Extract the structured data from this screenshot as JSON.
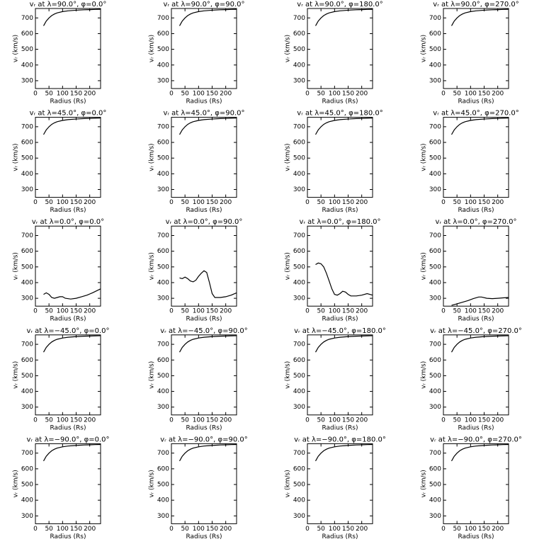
{
  "chart_data": [
    {
      "type": "line",
      "title": "vᵣ at λ=90.0°, φ=0.0°",
      "x_label": "Radius (Rs)",
      "y_label": "vᵣ (km/s)",
      "x": [
        30,
        40,
        50,
        60,
        70,
        80,
        100,
        120,
        140,
        160,
        180,
        200,
        220,
        240
      ],
      "values": [
        650,
        680,
        700,
        715,
        725,
        732,
        740,
        745,
        748,
        750,
        752,
        753,
        754,
        755
      ],
      "xlim": [
        0,
        240
      ],
      "ylim": [
        250,
        760
      ],
      "xticks": [
        0,
        50,
        100,
        150,
        200
      ],
      "yticks": [
        300,
        400,
        500,
        600,
        700
      ],
      "color": "#000000"
    },
    {
      "type": "line",
      "title": "vᵣ at λ=90.0°, φ=90.0°",
      "x_label": "Radius (Rs)",
      "y_label": "vᵣ (km/s)",
      "x": [
        30,
        40,
        50,
        60,
        70,
        80,
        100,
        120,
        140,
        160,
        180,
        200,
        220,
        240
      ],
      "values": [
        650,
        680,
        700,
        715,
        725,
        732,
        740,
        745,
        748,
        750,
        752,
        753,
        754,
        755
      ],
      "xlim": [
        0,
        240
      ],
      "ylim": [
        250,
        760
      ],
      "xticks": [
        0,
        50,
        100,
        150,
        200
      ],
      "yticks": [
        300,
        400,
        500,
        600,
        700
      ],
      "color": "#000000"
    },
    {
      "type": "line",
      "title": "vᵣ at λ=90.0°, φ=180.0°",
      "x_label": "Radius (Rs)",
      "y_label": "vᵣ (km/s)",
      "x": [
        30,
        40,
        50,
        60,
        70,
        80,
        100,
        120,
        140,
        160,
        180,
        200,
        220,
        240
      ],
      "values": [
        650,
        680,
        700,
        715,
        725,
        732,
        740,
        745,
        748,
        750,
        752,
        753,
        754,
        755
      ],
      "xlim": [
        0,
        240
      ],
      "ylim": [
        250,
        760
      ],
      "xticks": [
        0,
        50,
        100,
        150,
        200
      ],
      "yticks": [
        300,
        400,
        500,
        600,
        700
      ],
      "color": "#000000"
    },
    {
      "type": "line",
      "title": "vᵣ at λ=90.0°, φ=270.0°",
      "x_label": "Radius (Rs)",
      "y_label": "vᵣ (km/s)",
      "x": [
        30,
        40,
        50,
        60,
        70,
        80,
        100,
        120,
        140,
        160,
        180,
        200,
        220,
        240
      ],
      "values": [
        650,
        680,
        700,
        715,
        725,
        732,
        740,
        745,
        748,
        750,
        752,
        753,
        754,
        755
      ],
      "xlim": [
        0,
        240
      ],
      "ylim": [
        250,
        760
      ],
      "xticks": [
        0,
        50,
        100,
        150,
        200
      ],
      "yticks": [
        300,
        400,
        500,
        600,
        700
      ],
      "color": "#000000"
    },
    {
      "type": "line",
      "title": "vᵣ at λ=45.0°, φ=0.0°",
      "x_label": "Radius (Rs)",
      "y_label": "vᵣ (km/s)",
      "x": [
        30,
        40,
        50,
        60,
        70,
        80,
        100,
        120,
        140,
        160,
        180,
        200,
        220,
        240
      ],
      "values": [
        650,
        680,
        700,
        715,
        725,
        732,
        740,
        745,
        748,
        750,
        752,
        753,
        754,
        755
      ],
      "xlim": [
        0,
        240
      ],
      "ylim": [
        250,
        760
      ],
      "xticks": [
        0,
        50,
        100,
        150,
        200
      ],
      "yticks": [
        300,
        400,
        500,
        600,
        700
      ],
      "color": "#000000"
    },
    {
      "type": "line",
      "title": "vᵣ at λ=45.0°, φ=90.0°",
      "x_label": "Radius (Rs)",
      "y_label": "vᵣ (km/s)",
      "x": [
        30,
        40,
        50,
        60,
        70,
        80,
        100,
        120,
        140,
        160,
        180,
        200,
        220,
        240
      ],
      "values": [
        650,
        680,
        700,
        715,
        725,
        732,
        740,
        745,
        748,
        750,
        752,
        753,
        754,
        755
      ],
      "xlim": [
        0,
        240
      ],
      "ylim": [
        250,
        760
      ],
      "xticks": [
        0,
        50,
        100,
        150,
        200
      ],
      "yticks": [
        300,
        400,
        500,
        600,
        700
      ],
      "color": "#000000"
    },
    {
      "type": "line",
      "title": "vᵣ at λ=45.0°, φ=180.0°",
      "x_label": "Radius (Rs)",
      "y_label": "vᵣ (km/s)",
      "x": [
        30,
        40,
        50,
        60,
        70,
        80,
        100,
        120,
        140,
        160,
        180,
        200,
        220,
        240
      ],
      "values": [
        650,
        680,
        700,
        715,
        725,
        732,
        740,
        745,
        748,
        750,
        752,
        753,
        754,
        755
      ],
      "xlim": [
        0,
        240
      ],
      "ylim": [
        250,
        760
      ],
      "xticks": [
        0,
        50,
        100,
        150,
        200
      ],
      "yticks": [
        300,
        400,
        500,
        600,
        700
      ],
      "color": "#000000"
    },
    {
      "type": "line",
      "title": "vᵣ at λ=45.0°, φ=270.0°",
      "x_label": "Radius (Rs)",
      "y_label": "vᵣ (km/s)",
      "x": [
        30,
        40,
        50,
        60,
        70,
        80,
        100,
        120,
        140,
        160,
        180,
        200,
        220,
        240
      ],
      "values": [
        650,
        680,
        700,
        715,
        725,
        732,
        740,
        745,
        748,
        750,
        752,
        753,
        754,
        755
      ],
      "xlim": [
        0,
        240
      ],
      "ylim": [
        250,
        760
      ],
      "xticks": [
        0,
        50,
        100,
        150,
        200
      ],
      "yticks": [
        300,
        400,
        500,
        600,
        700
      ],
      "color": "#000000"
    },
    {
      "type": "line",
      "title": "vᵣ at λ=0.0°, φ=0.0°",
      "x_label": "Radius (Rs)",
      "y_label": "vᵣ (km/s)",
      "x": [
        30,
        40,
        50,
        60,
        70,
        80,
        90,
        100,
        110,
        130,
        150,
        170,
        190,
        210,
        240
      ],
      "values": [
        325,
        335,
        325,
        305,
        300,
        305,
        310,
        310,
        300,
        295,
        300,
        310,
        320,
        335,
        360
      ],
      "xlim": [
        0,
        240
      ],
      "ylim": [
        250,
        760
      ],
      "xticks": [
        0,
        50,
        100,
        150,
        200
      ],
      "yticks": [
        300,
        400,
        500,
        600,
        700
      ],
      "color": "#000000"
    },
    {
      "type": "line",
      "title": "vᵣ at λ=0.0°, φ=90.0°",
      "x_label": "Radius (Rs)",
      "y_label": "vᵣ (km/s)",
      "x": [
        30,
        40,
        50,
        60,
        70,
        80,
        90,
        100,
        110,
        120,
        130,
        140,
        150,
        160,
        180,
        200,
        220,
        240
      ],
      "values": [
        430,
        425,
        435,
        425,
        410,
        405,
        415,
        440,
        460,
        475,
        465,
        400,
        330,
        305,
        305,
        310,
        320,
        335
      ],
      "xlim": [
        0,
        240
      ],
      "ylim": [
        250,
        760
      ],
      "xticks": [
        0,
        50,
        100,
        150,
        200
      ],
      "yticks": [
        300,
        400,
        500,
        600,
        700
      ],
      "color": "#000000"
    },
    {
      "type": "line",
      "title": "vᵣ at λ=0.0°, φ=180.0°",
      "x_label": "Radius (Rs)",
      "y_label": "vᵣ (km/s)",
      "x": [
        30,
        40,
        50,
        60,
        70,
        80,
        90,
        100,
        110,
        120,
        130,
        140,
        150,
        160,
        180,
        200,
        220,
        240
      ],
      "values": [
        515,
        525,
        520,
        500,
        460,
        410,
        360,
        325,
        320,
        330,
        345,
        340,
        325,
        315,
        315,
        320,
        330,
        320
      ],
      "xlim": [
        0,
        240
      ],
      "ylim": [
        250,
        760
      ],
      "xticks": [
        0,
        50,
        100,
        150,
        200
      ],
      "yticks": [
        300,
        400,
        500,
        600,
        700
      ],
      "color": "#000000"
    },
    {
      "type": "line",
      "title": "vᵣ at λ=0.0°, φ=270.0°",
      "x_label": "Radius (Rs)",
      "y_label": "vᵣ (km/s)",
      "x": [
        30,
        50,
        70,
        90,
        110,
        130,
        140,
        160,
        180,
        200,
        220,
        240
      ],
      "values": [
        255,
        265,
        275,
        285,
        298,
        308,
        308,
        300,
        298,
        300,
        303,
        305
      ],
      "xlim": [
        0,
        240
      ],
      "ylim": [
        250,
        760
      ],
      "xticks": [
        0,
        50,
        100,
        150,
        200
      ],
      "yticks": [
        300,
        400,
        500,
        600,
        700
      ],
      "color": "#000000"
    },
    {
      "type": "line",
      "title": "vᵣ at λ=−45.0°, φ=0.0°",
      "x_label": "Radius (Rs)",
      "y_label": "vᵣ (km/s)",
      "x": [
        30,
        40,
        50,
        60,
        70,
        80,
        100,
        120,
        140,
        160,
        180,
        200,
        220,
        240
      ],
      "values": [
        650,
        680,
        700,
        715,
        725,
        732,
        740,
        745,
        748,
        750,
        752,
        753,
        754,
        755
      ],
      "xlim": [
        0,
        240
      ],
      "ylim": [
        250,
        760
      ],
      "xticks": [
        0,
        50,
        100,
        150,
        200
      ],
      "yticks": [
        300,
        400,
        500,
        600,
        700
      ],
      "color": "#000000"
    },
    {
      "type": "line",
      "title": "vᵣ at λ=−45.0°, φ=90.0°",
      "x_label": "Radius (Rs)",
      "y_label": "vᵣ (km/s)",
      "x": [
        30,
        40,
        50,
        60,
        70,
        80,
        100,
        120,
        140,
        160,
        180,
        200,
        220,
        240
      ],
      "values": [
        650,
        680,
        700,
        715,
        725,
        732,
        740,
        745,
        748,
        750,
        752,
        753,
        754,
        755
      ],
      "xlim": [
        0,
        240
      ],
      "ylim": [
        250,
        760
      ],
      "xticks": [
        0,
        50,
        100,
        150,
        200
      ],
      "yticks": [
        300,
        400,
        500,
        600,
        700
      ],
      "color": "#000000"
    },
    {
      "type": "line",
      "title": "vᵣ at λ=−45.0°, φ=180.0°",
      "x_label": "Radius (Rs)",
      "y_label": "vᵣ (km/s)",
      "x": [
        30,
        40,
        50,
        60,
        70,
        80,
        100,
        120,
        140,
        160,
        180,
        200,
        220,
        240
      ],
      "values": [
        650,
        680,
        700,
        715,
        725,
        732,
        740,
        745,
        748,
        750,
        752,
        753,
        754,
        755
      ],
      "xlim": [
        0,
        240
      ],
      "ylim": [
        250,
        760
      ],
      "xticks": [
        0,
        50,
        100,
        150,
        200
      ],
      "yticks": [
        300,
        400,
        500,
        600,
        700
      ],
      "color": "#000000"
    },
    {
      "type": "line",
      "title": "vᵣ at λ=−45.0°, φ=270.0°",
      "x_label": "Radius (Rs)",
      "y_label": "vᵣ (km/s)",
      "x": [
        30,
        40,
        50,
        60,
        70,
        80,
        100,
        120,
        140,
        160,
        180,
        200,
        220,
        240
      ],
      "values": [
        650,
        680,
        700,
        715,
        725,
        732,
        740,
        745,
        748,
        750,
        752,
        753,
        754,
        755
      ],
      "xlim": [
        0,
        240
      ],
      "ylim": [
        250,
        760
      ],
      "xticks": [
        0,
        50,
        100,
        150,
        200
      ],
      "yticks": [
        300,
        400,
        500,
        600,
        700
      ],
      "color": "#000000"
    },
    {
      "type": "line",
      "title": "vᵣ at λ=−90.0°, φ=0.0°",
      "x_label": "Radius (Rs)",
      "y_label": "vᵣ (km/s)",
      "x": [
        30,
        40,
        50,
        60,
        70,
        80,
        100,
        120,
        140,
        160,
        180,
        200,
        220,
        240
      ],
      "values": [
        650,
        680,
        700,
        715,
        725,
        732,
        740,
        745,
        748,
        750,
        752,
        753,
        754,
        755
      ],
      "xlim": [
        0,
        240
      ],
      "ylim": [
        250,
        760
      ],
      "xticks": [
        0,
        50,
        100,
        150,
        200
      ],
      "yticks": [
        300,
        400,
        500,
        600,
        700
      ],
      "color": "#000000"
    },
    {
      "type": "line",
      "title": "vᵣ at λ=−90.0°, φ=90.0°",
      "x_label": "Radius (Rs)",
      "y_label": "vᵣ (km/s)",
      "x": [
        30,
        40,
        50,
        60,
        70,
        80,
        100,
        120,
        140,
        160,
        180,
        200,
        220,
        240
      ],
      "values": [
        650,
        680,
        700,
        715,
        725,
        732,
        740,
        745,
        748,
        750,
        752,
        753,
        754,
        755
      ],
      "xlim": [
        0,
        240
      ],
      "ylim": [
        250,
        760
      ],
      "xticks": [
        0,
        50,
        100,
        150,
        200
      ],
      "yticks": [
        300,
        400,
        500,
        600,
        700
      ],
      "color": "#000000"
    },
    {
      "type": "line",
      "title": "vᵣ at λ=−90.0°, φ=180.0°",
      "x_label": "Radius (Rs)",
      "y_label": "vᵣ (km/s)",
      "x": [
        30,
        40,
        50,
        60,
        70,
        80,
        100,
        120,
        140,
        160,
        180,
        200,
        220,
        240
      ],
      "values": [
        650,
        680,
        700,
        715,
        725,
        732,
        740,
        745,
        748,
        750,
        752,
        753,
        754,
        755
      ],
      "xlim": [
        0,
        240
      ],
      "ylim": [
        250,
        760
      ],
      "xticks": [
        0,
        50,
        100,
        150,
        200
      ],
      "yticks": [
        300,
        400,
        500,
        600,
        700
      ],
      "color": "#000000"
    },
    {
      "type": "line",
      "title": "vᵣ at λ=−90.0°, φ=270.0°",
      "x_label": "Radius (Rs)",
      "y_label": "vᵣ (km/s)",
      "x": [
        30,
        40,
        50,
        60,
        70,
        80,
        100,
        120,
        140,
        160,
        180,
        200,
        220,
        240
      ],
      "values": [
        650,
        680,
        700,
        715,
        725,
        732,
        740,
        745,
        748,
        750,
        752,
        753,
        754,
        755
      ],
      "xlim": [
        0,
        240
      ],
      "ylim": [
        250,
        760
      ],
      "xticks": [
        0,
        50,
        100,
        150,
        200
      ],
      "yticks": [
        300,
        400,
        500,
        600,
        700
      ],
      "color": "#000000"
    }
  ]
}
